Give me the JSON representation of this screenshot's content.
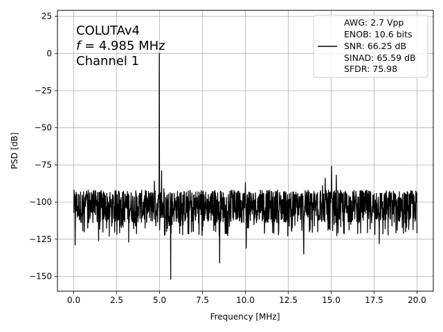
{
  "chart_data": {
    "type": "line",
    "title": "",
    "xlabel": "Frequency [MHz]",
    "ylabel": "PSD [dB]",
    "xlim": [
      -0.95,
      20.95
    ],
    "ylim": [
      -160,
      29
    ],
    "x_ticks": [
      0.0,
      2.5,
      5.0,
      7.5,
      10.0,
      12.5,
      15.0,
      17.5,
      20.0
    ],
    "x_tick_labels": [
      "0.0",
      "2.5",
      "5.0",
      "7.5",
      "10.0",
      "12.5",
      "15.0",
      "17.5",
      "20.0"
    ],
    "y_ticks": [
      25,
      0,
      -25,
      -50,
      -75,
      -100,
      -125,
      -150
    ],
    "y_tick_labels": [
      "25",
      "0",
      "−25",
      "−50",
      "−75",
      "−100",
      "−125",
      "−150"
    ],
    "grid": true,
    "annotation": {
      "line1": "COLUTAv4",
      "line2_var": "f",
      "line2_rest": " = 4.985 MHz",
      "line3": "Channel 1"
    },
    "legend": {
      "location": "top-right",
      "lines": [
        "AWG: 2.7 Vpp",
        "ENOB: 10.6 bits",
        "SNR: 66.25 dB",
        "SINAD: 65.59 dB",
        "SFDR: 75.98"
      ]
    },
    "series": [
      {
        "color": "#000000",
        "noise_floor_db": -103,
        "noise_band_db": [
          -115,
          -92
        ],
        "x_start": 0.0,
        "x_end": 20.0,
        "peaks": [
          {
            "x": 0.02,
            "y": -92
          },
          {
            "x": 0.08,
            "y": -129
          },
          {
            "x": 1.45,
            "y": -126
          },
          {
            "x": 3.2,
            "y": -127
          },
          {
            "x": 4.7,
            "y": -86
          },
          {
            "x": 4.985,
            "y": 0
          },
          {
            "x": 5.12,
            "y": -79
          },
          {
            "x": 5.25,
            "y": -91
          },
          {
            "x": 5.65,
            "y": -152
          },
          {
            "x": 8.5,
            "y": -141
          },
          {
            "x": 10.0,
            "y": -87
          },
          {
            "x": 10.05,
            "y": -131
          },
          {
            "x": 13.4,
            "y": -135
          },
          {
            "x": 14.5,
            "y": -89
          },
          {
            "x": 14.65,
            "y": -84
          },
          {
            "x": 15.02,
            "y": -76
          },
          {
            "x": 15.3,
            "y": -82
          },
          {
            "x": 17.8,
            "y": -128
          },
          {
            "x": 20.0,
            "y": -121
          }
        ]
      }
    ]
  }
}
